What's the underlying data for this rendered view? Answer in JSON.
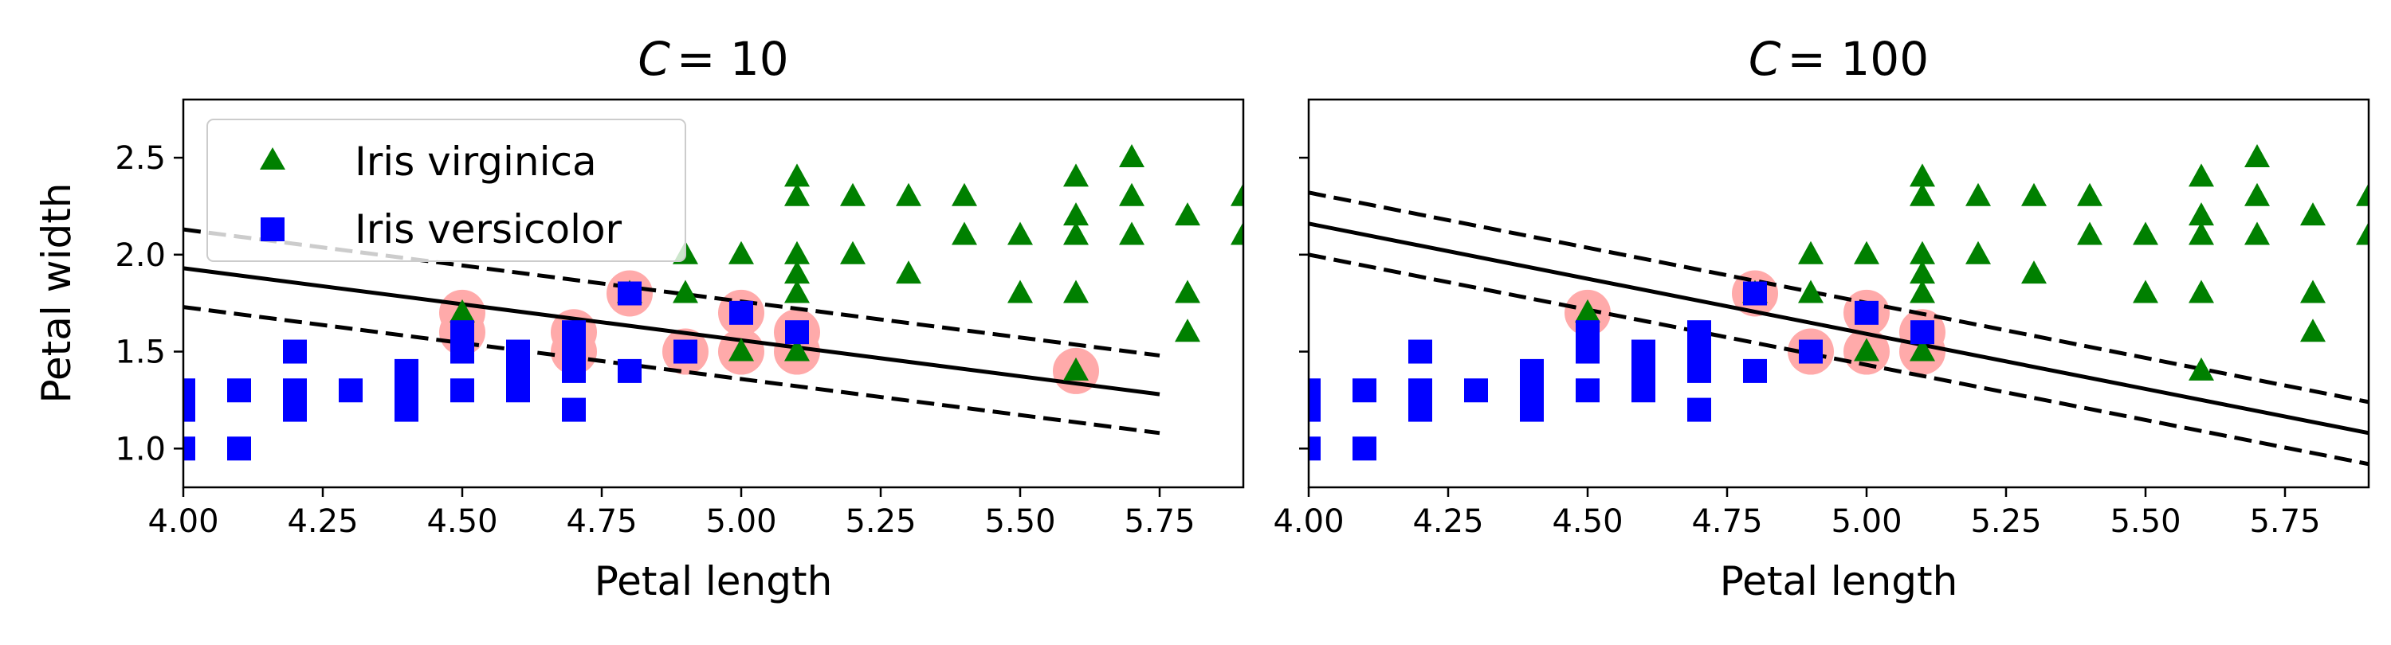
{
  "colors": {
    "virginica": "#008000",
    "versicolor": "#0000ff",
    "support_vector": "#ffaaaa",
    "margin_left_faded": "#bbbbbb",
    "line": "#000000"
  },
  "chart_data": [
    {
      "type": "scatter",
      "title": "C = 10",
      "title_var": "C",
      "title_eq": "= 10",
      "xlabel": "Petal length",
      "ylabel": "Petal width",
      "xlim": [
        4.0,
        5.9
      ],
      "ylim": [
        0.8,
        2.8
      ],
      "xticks": [
        "4.00",
        "4.25",
        "4.50",
        "4.75",
        "5.00",
        "5.25",
        "5.50",
        "5.75"
      ],
      "yticks": [
        "1.0",
        "1.5",
        "2.0",
        "2.5"
      ],
      "legend": {
        "placement": "upper-left",
        "entries": [
          "Iris virginica",
          "Iris versicolor"
        ]
      },
      "decision_boundary": {
        "x": [
          4.0,
          5.75
        ],
        "y": [
          1.93,
          1.28
        ]
      },
      "margin_upper": {
        "x": [
          4.0,
          5.75
        ],
        "y": [
          2.13,
          1.48
        ]
      },
      "margin_lower": {
        "x": [
          4.0,
          5.75
        ],
        "y": [
          1.73,
          1.08
        ]
      },
      "support_vectors": [
        [
          4.5,
          1.7
        ],
        [
          4.5,
          1.6
        ],
        [
          4.7,
          1.6
        ],
        [
          4.7,
          1.5
        ],
        [
          4.8,
          1.8
        ],
        [
          4.9,
          1.5
        ],
        [
          5.0,
          1.7
        ],
        [
          5.0,
          1.5
        ],
        [
          5.1,
          1.6
        ],
        [
          5.1,
          1.5
        ],
        [
          5.6,
          1.4
        ]
      ]
    },
    {
      "type": "scatter",
      "title": "C = 100",
      "title_var": "C",
      "title_eq": "= 100",
      "xlabel": "Petal length",
      "ylabel": "",
      "xlim": [
        4.0,
        5.9
      ],
      "ylim": [
        0.8,
        2.8
      ],
      "xticks": [
        "4.00",
        "4.25",
        "4.50",
        "4.75",
        "5.00",
        "5.25",
        "5.50",
        "5.75"
      ],
      "yticks": [
        "1.0",
        "1.5",
        "2.0",
        "2.5"
      ],
      "decision_boundary": {
        "x": [
          4.0,
          5.9
        ],
        "y": [
          2.16,
          1.08
        ]
      },
      "margin_upper": {
        "x": [
          4.0,
          5.9
        ],
        "y": [
          2.32,
          1.24
        ]
      },
      "margin_lower": {
        "x": [
          4.0,
          5.9
        ],
        "y": [
          2.0,
          0.92
        ]
      },
      "support_vectors": [
        [
          4.5,
          1.7
        ],
        [
          4.8,
          1.8
        ],
        [
          4.9,
          1.5
        ],
        [
          5.0,
          1.7
        ],
        [
          5.0,
          1.5
        ],
        [
          5.1,
          1.6
        ],
        [
          5.1,
          1.5
        ]
      ]
    }
  ],
  "series": [
    {
      "name": "Iris virginica",
      "marker": "triangle",
      "points": [
        [
          4.5,
          1.7
        ],
        [
          4.8,
          1.8
        ],
        [
          4.9,
          1.8
        ],
        [
          4.9,
          2.0
        ],
        [
          5.0,
          1.5
        ],
        [
          5.0,
          2.0
        ],
        [
          5.1,
          1.5
        ],
        [
          5.1,
          1.8
        ],
        [
          5.1,
          1.9
        ],
        [
          5.1,
          2.0
        ],
        [
          5.1,
          2.3
        ],
        [
          5.1,
          2.4
        ],
        [
          5.2,
          2.0
        ],
        [
          5.2,
          2.3
        ],
        [
          5.3,
          1.9
        ],
        [
          5.3,
          2.3
        ],
        [
          5.4,
          2.1
        ],
        [
          5.4,
          2.3
        ],
        [
          5.5,
          1.8
        ],
        [
          5.5,
          2.1
        ],
        [
          5.6,
          1.4
        ],
        [
          5.6,
          1.8
        ],
        [
          5.6,
          2.1
        ],
        [
          5.6,
          2.2
        ],
        [
          5.6,
          2.4
        ],
        [
          5.7,
          2.1
        ],
        [
          5.7,
          2.3
        ],
        [
          5.7,
          2.5
        ],
        [
          5.8,
          1.6
        ],
        [
          5.8,
          1.8
        ],
        [
          5.8,
          2.2
        ],
        [
          5.9,
          2.1
        ],
        [
          5.9,
          2.3
        ]
      ]
    },
    {
      "name": "Iris versicolor",
      "marker": "square",
      "points": [
        [
          4.0,
          1.0
        ],
        [
          4.0,
          1.2
        ],
        [
          4.0,
          1.3
        ],
        [
          4.1,
          1.0
        ],
        [
          4.1,
          1.3
        ],
        [
          4.2,
          1.2
        ],
        [
          4.2,
          1.3
        ],
        [
          4.2,
          1.5
        ],
        [
          4.3,
          1.3
        ],
        [
          4.4,
          1.2
        ],
        [
          4.4,
          1.3
        ],
        [
          4.4,
          1.4
        ],
        [
          4.5,
          1.3
        ],
        [
          4.5,
          1.5
        ],
        [
          4.5,
          1.6
        ],
        [
          4.6,
          1.3
        ],
        [
          4.6,
          1.4
        ],
        [
          4.6,
          1.5
        ],
        [
          4.7,
          1.2
        ],
        [
          4.7,
          1.4
        ],
        [
          4.7,
          1.5
        ],
        [
          4.7,
          1.6
        ],
        [
          4.8,
          1.4
        ],
        [
          4.8,
          1.8
        ],
        [
          4.9,
          1.5
        ],
        [
          5.0,
          1.7
        ],
        [
          5.1,
          1.6
        ]
      ]
    }
  ]
}
